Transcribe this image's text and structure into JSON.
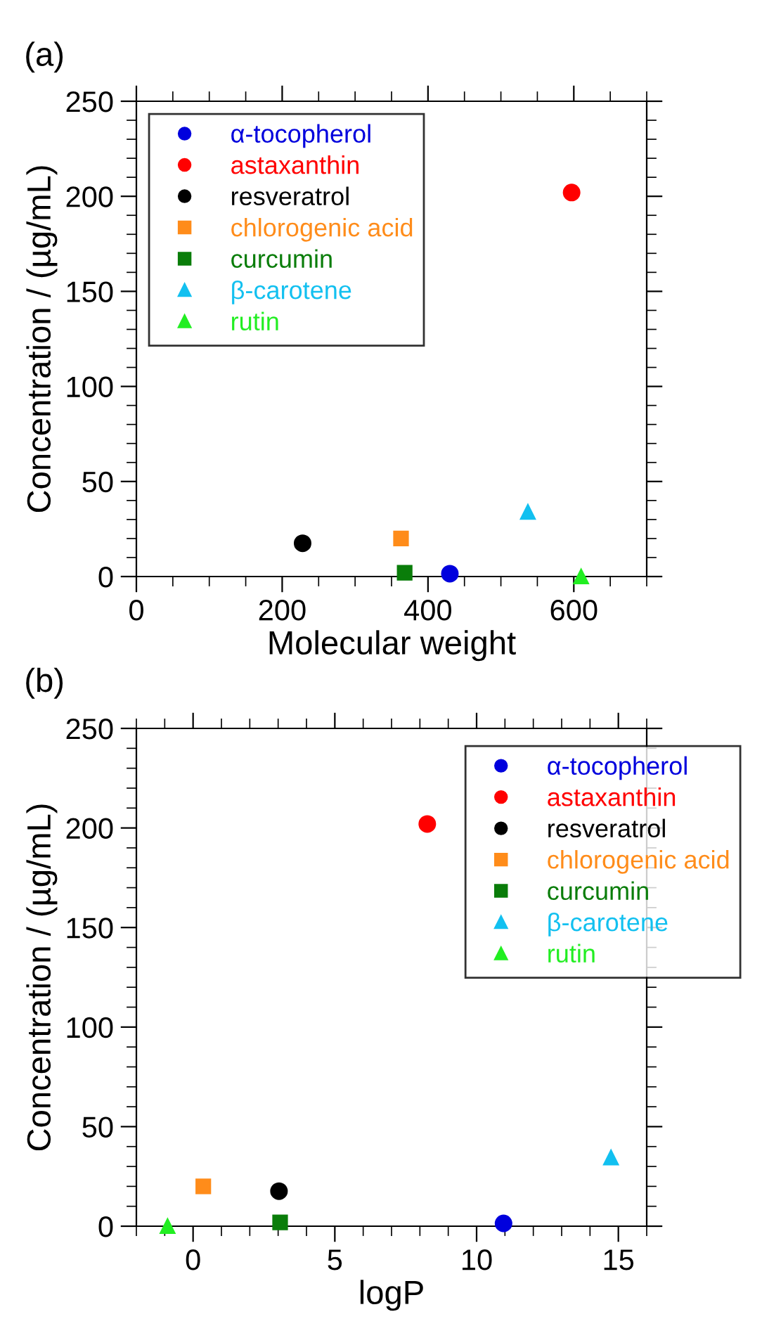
{
  "chart_data": [
    {
      "type": "scatter",
      "title": "(a)",
      "xlabel": "Molecular weight",
      "ylabel": "Concentration / (µg/mL)",
      "xlim": [
        0,
        700
      ],
      "xticks": [
        0,
        200,
        400,
        600
      ],
      "ylim": [
        0,
        250
      ],
      "yticks": [
        0,
        50,
        100,
        150,
        200,
        250
      ],
      "grid": false,
      "legend": "top left",
      "series": [
        {
          "name": "α-tocopherol",
          "color": "#0000dd",
          "marker": "circle",
          "x": [
            430
          ],
          "values": [
            1.5
          ]
        },
        {
          "name": "astaxanthin",
          "color": "#ff0000",
          "marker": "circle",
          "x": [
            597
          ],
          "values": [
            202
          ]
        },
        {
          "name": "resveratrol",
          "color": "#000000",
          "marker": "circle",
          "x": [
            228
          ],
          "values": [
            17.5
          ]
        },
        {
          "name": "chlorogenic acid",
          "color": "#ff8c1a",
          "marker": "square",
          "x": [
            363
          ],
          "values": [
            20
          ]
        },
        {
          "name": "curcumin",
          "color": "#0a7d0a",
          "marker": "square",
          "x": [
            368
          ],
          "values": [
            2
          ]
        },
        {
          "name": "β-carotene",
          "color": "#12c0f0",
          "marker": "triangle",
          "x": [
            537
          ],
          "values": [
            34
          ]
        },
        {
          "name": "rutin",
          "color": "#22ee22",
          "marker": "triangle",
          "x": [
            610
          ],
          "values": [
            0
          ]
        }
      ]
    },
    {
      "type": "scatter",
      "title": "(b)",
      "xlabel": "logP",
      "ylabel": "Concentration / (µg/mL)",
      "xlim": [
        -2,
        16
      ],
      "xticks": [
        0,
        5,
        10,
        15
      ],
      "ylim": [
        0,
        250
      ],
      "yticks": [
        0,
        50,
        100,
        150,
        200,
        250
      ],
      "grid": false,
      "legend": "top right",
      "series": [
        {
          "name": "α-tocopherol",
          "color": "#0000dd",
          "marker": "circle",
          "x": [
            10.95
          ],
          "values": [
            1.4
          ]
        },
        {
          "name": "astaxanthin",
          "color": "#ff0000",
          "marker": "circle",
          "x": [
            8.26
          ],
          "values": [
            202
          ]
        },
        {
          "name": "resveratrol",
          "color": "#000000",
          "marker": "circle",
          "x": [
            3.03
          ],
          "values": [
            17.6
          ]
        },
        {
          "name": "chlorogenic acid",
          "color": "#ff8c1a",
          "marker": "square",
          "x": [
            0.36
          ],
          "values": [
            20
          ]
        },
        {
          "name": "curcumin",
          "color": "#0a7d0a",
          "marker": "square",
          "x": [
            3.07
          ],
          "values": [
            1.9
          ]
        },
        {
          "name": "β-carotene",
          "color": "#12c0f0",
          "marker": "triangle",
          "x": [
            14.74
          ],
          "values": [
            34.5
          ]
        },
        {
          "name": "rutin",
          "color": "#22ee22",
          "marker": "triangle",
          "x": [
            -0.9
          ],
          "values": [
            0
          ]
        }
      ]
    }
  ]
}
